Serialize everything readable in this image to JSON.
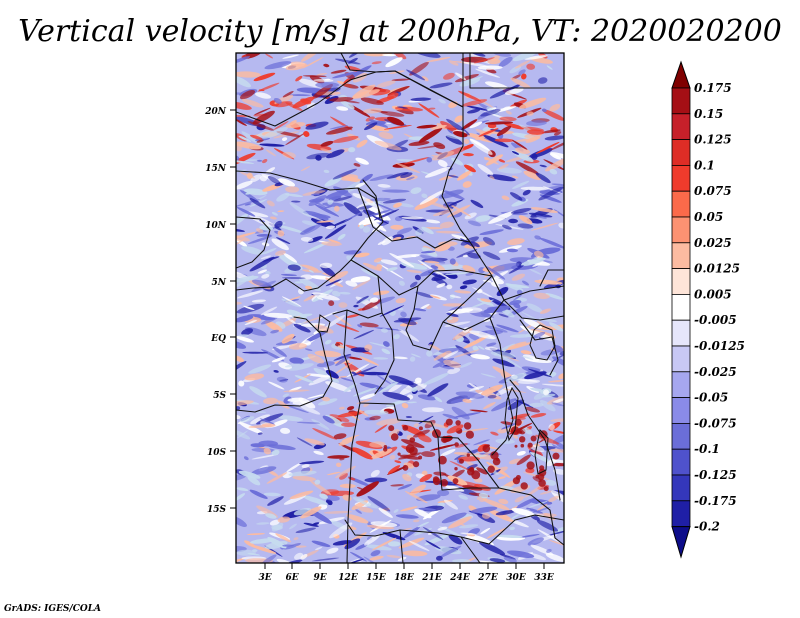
{
  "title": "Vertical velocity [m/s] at 200hPa, VT: 2020020200",
  "credit": "GrADS: IGES/COLA",
  "map": {
    "lat_labels": [
      "20N",
      "15N",
      "10N",
      "5N",
      "EQ",
      "5S",
      "10S",
      "15S"
    ],
    "lon_labels": [
      "3E",
      "6E",
      "9E",
      "12E",
      "15E",
      "18E",
      "21E",
      "24E",
      "27E",
      "30E",
      "33E"
    ],
    "colors": {
      "positive_strong": "#a50f15",
      "positive_mid": "#ef3b2c",
      "positive_light": "#fcbba1",
      "neutral": "#ffffff",
      "negative_light": "#c6dbef",
      "negative_mid": "#6b6ed8",
      "negative_strong": "#1f1fa6",
      "boundary": "#111111"
    }
  },
  "colorbar": {
    "labels": [
      "0.175",
      "0.15",
      "0.125",
      "0.1",
      "0.075",
      "0.05",
      "0.025",
      "0.0125",
      "0.005",
      "-0.005",
      "-0.0125",
      "-0.025",
      "-0.05",
      "-0.075",
      "-0.1",
      "-0.125",
      "-0.175",
      "-0.2"
    ],
    "colors": [
      "#7f0000",
      "#a50f15",
      "#c6202a",
      "#de2d26",
      "#ef3b2c",
      "#fb6a4a",
      "#fc9272",
      "#fcbba1",
      "#fee5d9",
      "#ffffff",
      "#e6e6fb",
      "#c8c8f5",
      "#a6a7ef",
      "#8a8be8",
      "#6b6ed8",
      "#4f52cc",
      "#3437bb",
      "#1f1fa6",
      "#0d0d8a"
    ]
  }
}
